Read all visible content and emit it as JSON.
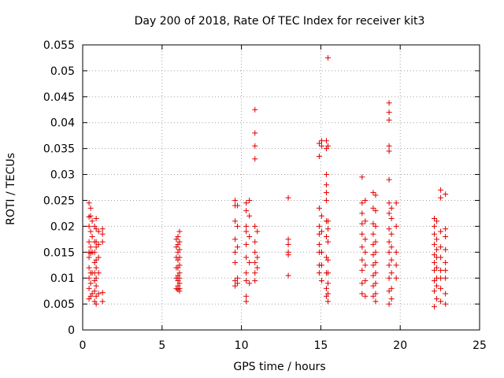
{
  "chart_data": {
    "type": "scatter",
    "title": "Day 200 of 2018, Rate Of TEC Index for receiver kit3",
    "xlabel": "GPS time / hours",
    "ylabel": "ROTI / TECUs",
    "xlim": [
      0,
      25
    ],
    "ylim": [
      0,
      0.055
    ],
    "grid": true,
    "marker": "+",
    "marker_color": "#e00000",
    "x_ticks": [
      0,
      5,
      10,
      15,
      20,
      25
    ],
    "x_tick_labels": [
      "0",
      "5",
      "10",
      "15",
      "20",
      "25"
    ],
    "y_ticks": [
      0,
      0.005,
      0.01,
      0.015,
      0.02,
      0.025,
      0.03,
      0.035,
      0.04,
      0.045,
      0.05,
      0.055
    ],
    "y_tick_labels": [
      "0",
      "0.005",
      "0.01",
      "0.015",
      "0.02",
      "0.025",
      "0.03",
      "0.035",
      "0.04",
      "0.045",
      "0.05",
      "0.055"
    ],
    "series": [
      {
        "name": "ROTI",
        "points": [
          [
            0.4,
            0.0245
          ],
          [
            0.4,
            0.0218
          ],
          [
            0.4,
            0.02
          ],
          [
            0.4,
            0.017
          ],
          [
            0.4,
            0.015
          ],
          [
            0.4,
            0.014
          ],
          [
            0.4,
            0.012
          ],
          [
            0.4,
            0.01
          ],
          [
            0.4,
            0.008
          ],
          [
            0.4,
            0.006
          ],
          [
            0.5,
            0.0235
          ],
          [
            0.5,
            0.022
          ],
          [
            0.5,
            0.019
          ],
          [
            0.5,
            0.016
          ],
          [
            0.5,
            0.0148
          ],
          [
            0.5,
            0.011
          ],
          [
            0.5,
            0.009
          ],
          [
            0.5,
            0.0065
          ],
          [
            0.6,
            0.021
          ],
          [
            0.6,
            0.018
          ],
          [
            0.6,
            0.015
          ],
          [
            0.6,
            0.011
          ],
          [
            0.6,
            0.007
          ],
          [
            0.75,
            0.02
          ],
          [
            0.75,
            0.017
          ],
          [
            0.75,
            0.015
          ],
          [
            0.75,
            0.013
          ],
          [
            0.75,
            0.011
          ],
          [
            0.75,
            0.0095
          ],
          [
            0.75,
            0.0075
          ],
          [
            0.75,
            0.0055
          ],
          [
            0.85,
            0.0215
          ],
          [
            0.85,
            0.0195
          ],
          [
            0.85,
            0.017
          ],
          [
            0.85,
            0.016
          ],
          [
            0.85,
            0.0135
          ],
          [
            0.85,
            0.012
          ],
          [
            0.85,
            0.01
          ],
          [
            0.85,
            0.0085
          ],
          [
            0.85,
            0.0065
          ],
          [
            0.85,
            0.005
          ],
          [
            1.0,
            0.019
          ],
          [
            1.0,
            0.0165
          ],
          [
            1.0,
            0.014
          ],
          [
            1.0,
            0.011
          ],
          [
            1.0,
            0.007
          ],
          [
            1.25,
            0.0195
          ],
          [
            1.25,
            0.0185
          ],
          [
            1.25,
            0.017
          ],
          [
            1.25,
            0.0072
          ],
          [
            1.25,
            0.0055
          ],
          [
            5.9,
            0.0175
          ],
          [
            5.9,
            0.016
          ],
          [
            5.9,
            0.014
          ],
          [
            5.9,
            0.012
          ],
          [
            5.9,
            0.01
          ],
          [
            5.9,
            0.008
          ],
          [
            6.0,
            0.018
          ],
          [
            6.0,
            0.0165
          ],
          [
            6.0,
            0.015
          ],
          [
            6.0,
            0.0135
          ],
          [
            6.0,
            0.012
          ],
          [
            6.0,
            0.0105
          ],
          [
            6.0,
            0.0095
          ],
          [
            6.0,
            0.0085
          ],
          [
            6.0,
            0.0078
          ],
          [
            6.1,
            0.019
          ],
          [
            6.1,
            0.017
          ],
          [
            6.1,
            0.0155
          ],
          [
            6.1,
            0.014
          ],
          [
            6.1,
            0.0125
          ],
          [
            6.1,
            0.011
          ],
          [
            6.1,
            0.01
          ],
          [
            6.1,
            0.009
          ],
          [
            6.1,
            0.008
          ],
          [
            6.1,
            0.0075
          ],
          [
            9.6,
            0.025
          ],
          [
            9.6,
            0.024
          ],
          [
            9.6,
            0.021
          ],
          [
            9.6,
            0.0175
          ],
          [
            9.6,
            0.015
          ],
          [
            9.6,
            0.013
          ],
          [
            9.6,
            0.0095
          ],
          [
            9.6,
            0.0085
          ],
          [
            9.75,
            0.024
          ],
          [
            9.75,
            0.02
          ],
          [
            9.75,
            0.016
          ],
          [
            9.75,
            0.01
          ],
          [
            9.75,
            0.009
          ],
          [
            10.3,
            0.0245
          ],
          [
            10.3,
            0.023
          ],
          [
            10.3,
            0.02
          ],
          [
            10.3,
            0.019
          ],
          [
            10.3,
            0.0165
          ],
          [
            10.3,
            0.014
          ],
          [
            10.3,
            0.011
          ],
          [
            10.3,
            0.0095
          ],
          [
            10.3,
            0.0065
          ],
          [
            10.3,
            0.0055
          ],
          [
            10.5,
            0.025
          ],
          [
            10.5,
            0.022
          ],
          [
            10.5,
            0.018
          ],
          [
            10.5,
            0.013
          ],
          [
            10.5,
            0.009
          ],
          [
            10.85,
            0.0425
          ],
          [
            10.85,
            0.038
          ],
          [
            10.85,
            0.0355
          ],
          [
            10.85,
            0.033
          ],
          [
            10.85,
            0.02
          ],
          [
            10.85,
            0.017
          ],
          [
            10.85,
            0.015
          ],
          [
            10.85,
            0.013
          ],
          [
            10.85,
            0.011
          ],
          [
            10.85,
            0.0095
          ],
          [
            11.0,
            0.019
          ],
          [
            11.0,
            0.014
          ],
          [
            11.0,
            0.012
          ],
          [
            12.95,
            0.0255
          ],
          [
            12.95,
            0.0175
          ],
          [
            12.95,
            0.0165
          ],
          [
            12.95,
            0.015
          ],
          [
            12.95,
            0.0145
          ],
          [
            12.95,
            0.0105
          ],
          [
            14.9,
            0.036
          ],
          [
            14.9,
            0.0335
          ],
          [
            14.9,
            0.0235
          ],
          [
            14.9,
            0.02
          ],
          [
            14.9,
            0.0185
          ],
          [
            14.9,
            0.0165
          ],
          [
            14.9,
            0.015
          ],
          [
            14.9,
            0.0125
          ],
          [
            14.9,
            0.011
          ],
          [
            15.05,
            0.0365
          ],
          [
            15.05,
            0.0355
          ],
          [
            15.05,
            0.022
          ],
          [
            15.05,
            0.019
          ],
          [
            15.05,
            0.015
          ],
          [
            15.05,
            0.0125
          ],
          [
            15.05,
            0.0095
          ],
          [
            15.35,
            0.0365
          ],
          [
            15.35,
            0.035
          ],
          [
            15.35,
            0.03
          ],
          [
            15.35,
            0.028
          ],
          [
            15.35,
            0.0265
          ],
          [
            15.35,
            0.025
          ],
          [
            15.35,
            0.021
          ],
          [
            15.35,
            0.018
          ],
          [
            15.35,
            0.014
          ],
          [
            15.35,
            0.011
          ],
          [
            15.35,
            0.008
          ],
          [
            15.35,
            0.0065
          ],
          [
            15.45,
            0.0525
          ],
          [
            15.45,
            0.0355
          ],
          [
            15.45,
            0.021
          ],
          [
            15.45,
            0.0195
          ],
          [
            15.45,
            0.017
          ],
          [
            15.45,
            0.0135
          ],
          [
            15.45,
            0.011
          ],
          [
            15.45,
            0.009
          ],
          [
            15.45,
            0.007
          ],
          [
            15.45,
            0.0055
          ],
          [
            17.6,
            0.0295
          ],
          [
            17.6,
            0.0245
          ],
          [
            17.6,
            0.0225
          ],
          [
            17.6,
            0.0205
          ],
          [
            17.6,
            0.0185
          ],
          [
            17.6,
            0.016
          ],
          [
            17.6,
            0.0135
          ],
          [
            17.6,
            0.0115
          ],
          [
            17.6,
            0.009
          ],
          [
            17.6,
            0.007
          ],
          [
            17.8,
            0.025
          ],
          [
            17.8,
            0.021
          ],
          [
            17.8,
            0.0175
          ],
          [
            17.8,
            0.015
          ],
          [
            17.8,
            0.0125
          ],
          [
            17.8,
            0.0095
          ],
          [
            17.8,
            0.0065
          ],
          [
            18.3,
            0.0265
          ],
          [
            18.3,
            0.0235
          ],
          [
            18.3,
            0.0205
          ],
          [
            18.3,
            0.0185
          ],
          [
            18.3,
            0.0165
          ],
          [
            18.3,
            0.0145
          ],
          [
            18.3,
            0.0125
          ],
          [
            18.3,
            0.0105
          ],
          [
            18.3,
            0.0085
          ],
          [
            18.3,
            0.0065
          ],
          [
            18.45,
            0.026
          ],
          [
            18.45,
            0.023
          ],
          [
            18.45,
            0.02
          ],
          [
            18.45,
            0.017
          ],
          [
            18.45,
            0.015
          ],
          [
            18.45,
            0.013
          ],
          [
            18.45,
            0.011
          ],
          [
            18.45,
            0.009
          ],
          [
            18.45,
            0.007
          ],
          [
            18.45,
            0.0055
          ],
          [
            19.3,
            0.0438
          ],
          [
            19.3,
            0.042
          ],
          [
            19.3,
            0.0405
          ],
          [
            19.3,
            0.0355
          ],
          [
            19.3,
            0.0345
          ],
          [
            19.3,
            0.029
          ],
          [
            19.3,
            0.0245
          ],
          [
            19.3,
            0.0225
          ],
          [
            19.3,
            0.0195
          ],
          [
            19.3,
            0.017
          ],
          [
            19.3,
            0.015
          ],
          [
            19.3,
            0.0125
          ],
          [
            19.3,
            0.01
          ],
          [
            19.3,
            0.0075
          ],
          [
            19.3,
            0.005
          ],
          [
            19.45,
            0.0235
          ],
          [
            19.45,
            0.0215
          ],
          [
            19.45,
            0.0185
          ],
          [
            19.45,
            0.016
          ],
          [
            19.45,
            0.0135
          ],
          [
            19.45,
            0.011
          ],
          [
            19.45,
            0.008
          ],
          [
            19.45,
            0.006
          ],
          [
            19.75,
            0.0245
          ],
          [
            19.75,
            0.02
          ],
          [
            19.75,
            0.015
          ],
          [
            19.75,
            0.0125
          ],
          [
            19.75,
            0.01
          ],
          [
            22.15,
            0.0215
          ],
          [
            22.15,
            0.02
          ],
          [
            22.15,
            0.0185
          ],
          [
            22.15,
            0.0165
          ],
          [
            22.15,
            0.0145
          ],
          [
            22.15,
            0.013
          ],
          [
            22.15,
            0.0115
          ],
          [
            22.15,
            0.0095
          ],
          [
            22.15,
            0.0075
          ],
          [
            22.15,
            0.0045
          ],
          [
            22.3,
            0.021
          ],
          [
            22.3,
            0.0175
          ],
          [
            22.3,
            0.0155
          ],
          [
            22.3,
            0.014
          ],
          [
            22.3,
            0.012
          ],
          [
            22.3,
            0.01
          ],
          [
            22.3,
            0.0085
          ],
          [
            22.3,
            0.006
          ],
          [
            22.55,
            0.027
          ],
          [
            22.55,
            0.0255
          ],
          [
            22.55,
            0.019
          ],
          [
            22.55,
            0.016
          ],
          [
            22.55,
            0.014
          ],
          [
            22.55,
            0.0115
          ],
          [
            22.55,
            0.01
          ],
          [
            22.55,
            0.008
          ],
          [
            22.55,
            0.0055
          ],
          [
            22.85,
            0.0262
          ],
          [
            22.85,
            0.0195
          ],
          [
            22.85,
            0.018
          ],
          [
            22.85,
            0.0155
          ],
          [
            22.85,
            0.013
          ],
          [
            22.85,
            0.0115
          ],
          [
            22.85,
            0.01
          ],
          [
            22.85,
            0.007
          ],
          [
            22.85,
            0.005
          ]
        ]
      }
    ]
  }
}
